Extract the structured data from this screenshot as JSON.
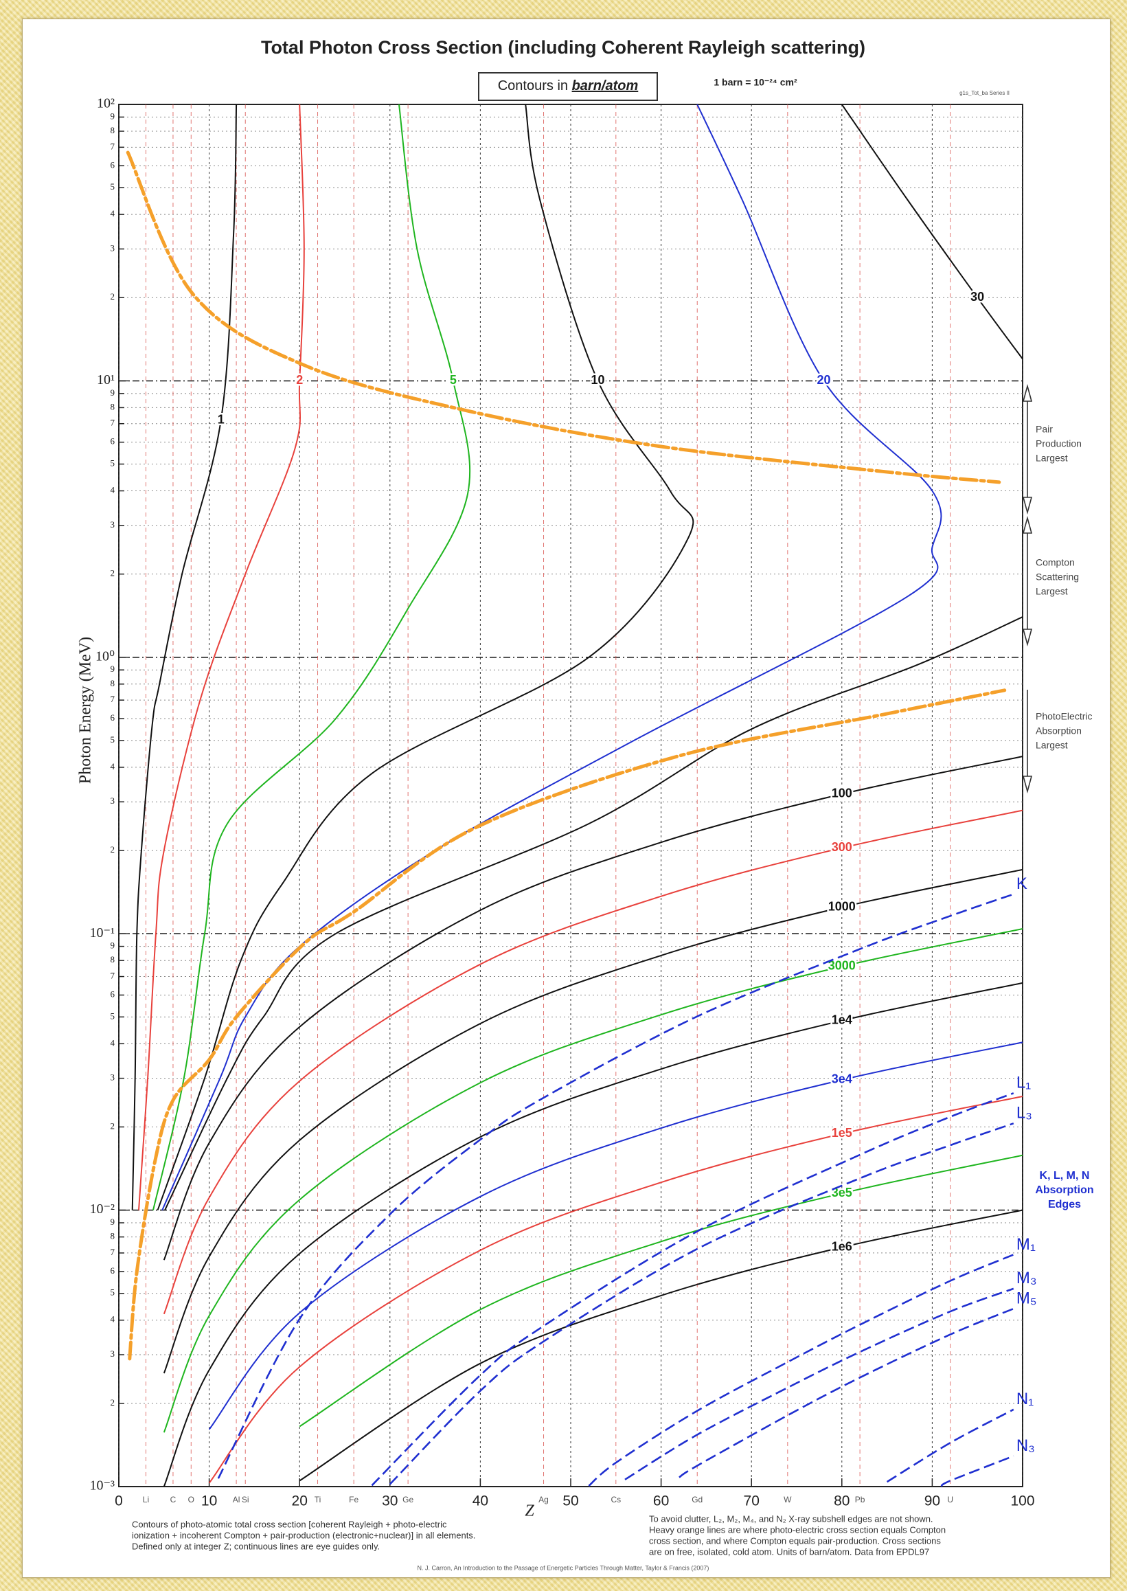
{
  "chart_data": {
    "type": "contour",
    "title": "Total Photon Cross Section (including Coherent Rayleigh scattering)",
    "box_prefix": "Contours in",
    "box_unit": "barn/atom",
    "unit_note": "1 barn = 10⁻²⁴ cm²",
    "code": "g1s_Tot_ba   Series II",
    "x_label": "Z",
    "y_label": "Photon Energy (MeV)",
    "log_y": true,
    "grid": true,
    "xlim": [
      0,
      100
    ],
    "ylim": [
      0.001,
      100
    ],
    "xticks": [
      0,
      10,
      20,
      30,
      40,
      50,
      60,
      70,
      80,
      90,
      100
    ],
    "yticks": [
      {
        "value": 0.001,
        "label": "10⁻³"
      },
      {
        "value": 0.002,
        "label": "2"
      },
      {
        "value": 0.003,
        "label": "3"
      },
      {
        "value": 0.004,
        "label": "4"
      },
      {
        "value": 0.005,
        "label": "5"
      },
      {
        "value": 0.006,
        "label": "6"
      },
      {
        "value": 0.007,
        "label": "7"
      },
      {
        "value": 0.008,
        "label": "8"
      },
      {
        "value": 0.009,
        "label": "9"
      },
      {
        "value": 0.01,
        "label": "10⁻²"
      },
      {
        "value": 0.02,
        "label": "2"
      },
      {
        "value": 0.03,
        "label": "3"
      },
      {
        "value": 0.04,
        "label": "4"
      },
      {
        "value": 0.05,
        "label": "5"
      },
      {
        "value": 0.06,
        "label": "6"
      },
      {
        "value": 0.07,
        "label": "7"
      },
      {
        "value": 0.08,
        "label": "8"
      },
      {
        "value": 0.09,
        "label": "9"
      },
      {
        "value": 0.1,
        "label": "10⁻¹"
      },
      {
        "value": 0.2,
        "label": "2"
      },
      {
        "value": 0.3,
        "label": "3"
      },
      {
        "value": 0.4,
        "label": "4"
      },
      {
        "value": 0.5,
        "label": "5"
      },
      {
        "value": 0.6,
        "label": "6"
      },
      {
        "value": 0.7,
        "label": "7"
      },
      {
        "value": 0.8,
        "label": "8"
      },
      {
        "value": 0.9,
        "label": "9"
      },
      {
        "value": 1,
        "label": "10⁰"
      },
      2,
      3,
      4,
      5,
      6,
      7,
      8,
      9,
      {
        "value": 10,
        "label": "10¹"
      },
      {
        "value": 20,
        "label": "2"
      },
      {
        "value": 30,
        "label": "3"
      },
      {
        "value": 40,
        "label": "4"
      },
      {
        "value": 50,
        "label": "5"
      },
      {
        "value": 60,
        "label": "6"
      },
      {
        "value": 70,
        "label": "7"
      },
      {
        "value": 80,
        "label": "8"
      },
      {
        "value": 90,
        "label": "9"
      },
      {
        "value": 100,
        "label": "10²"
      }
    ],
    "elements": {
      "names": [
        "Li",
        "C",
        "O",
        "Al",
        "Si",
        "Ti",
        "Fe",
        "Ge",
        "Ag",
        "Cs",
        "Gd",
        "W",
        "Pb",
        "U"
      ],
      "z": [
        3,
        6,
        8,
        13,
        14,
        22,
        26,
        32,
        47,
        55,
        64,
        74,
        82,
        92
      ],
      "color": "#d9534f"
    },
    "contours": [
      {
        "level": 1,
        "color": "#111111",
        "z": [
          13,
          12.7,
          11.3,
          7,
          4.5,
          3.7,
          2.5,
          2.0,
          1.8,
          1.5
        ],
        "energy": [
          100,
          34,
          7.2,
          2,
          0.8,
          0.57,
          0.2,
          0.1,
          0.03,
          0.01
        ]
      },
      {
        "level": 2,
        "color": "#e8413c",
        "z": [
          20,
          20.5,
          20,
          19.5,
          14,
          9,
          5,
          4.1,
          3.2,
          2.2
        ],
        "energy": [
          100,
          30,
          10,
          5.7,
          2,
          0.7,
          0.2,
          0.1,
          0.03,
          0.01
        ]
      },
      {
        "level": 5,
        "color": "#1fb51f",
        "z": [
          31,
          33,
          37,
          38.6,
          32,
          24,
          12,
          9.5,
          7.2,
          3.8
        ],
        "energy": [
          100,
          30,
          10,
          3.9,
          1.5,
          0.6,
          0.25,
          0.1,
          0.03,
          0.01
        ]
      },
      {
        "level": 10,
        "color": "#111111",
        "z": [
          45,
          46.6,
          53,
          61,
          63,
          52,
          28,
          18,
          13.5,
          9.5,
          4.3
        ],
        "energy": [
          100,
          45,
          10,
          4,
          2.7,
          1,
          0.38,
          0.15,
          0.08,
          0.03,
          0.01
        ]
      },
      {
        "level": 20,
        "color": "#1f2fd0",
        "z": [
          64,
          69,
          78,
          90,
          90,
          87.4,
          57,
          35,
          20,
          14,
          11.2,
          4.8
        ],
        "energy": [
          100,
          45,
          10,
          4,
          2.5,
          1.67,
          0.5,
          0.2,
          0.09,
          0.05,
          0.03,
          0.01
        ]
      },
      {
        "level": 30,
        "color": "#111111",
        "z": [
          80,
          87.3,
          95,
          100,
          null,
          100,
          88.4,
          70,
          52,
          24,
          16,
          12,
          5.1
        ],
        "energy": [
          100,
          45,
          20,
          12,
          null,
          1.4,
          0.94,
          0.55,
          0.25,
          0.1,
          0.05,
          0.03,
          0.01
        ]
      },
      {
        "level": 100,
        "color": "#111111",
        "z": [
          5,
          10,
          20,
          40,
          60,
          80,
          100
        ],
        "energy": [
          0.0066,
          0.0175,
          0.046,
          0.1216,
          0.214,
          0.32,
          0.438
        ]
      },
      {
        "level": 300,
        "color": "#e8413c",
        "z": [
          5,
          10,
          20,
          40,
          60,
          80,
          100
        ],
        "energy": [
          0.00421,
          0.0111,
          0.0293,
          0.0775,
          0.1366,
          0.2043,
          0.2794
        ]
      },
      {
        "level": 1000,
        "color": "#111111",
        "z": [
          5,
          10,
          20,
          40,
          60,
          80,
          100
        ],
        "energy": [
          0.00257,
          0.00679,
          0.0179,
          0.0473,
          0.0834,
          0.1247,
          0.1706
        ]
      },
      {
        "level": 3000,
        "color": "#1fb51f",
        "z": [
          5,
          10,
          20,
          40,
          60,
          80,
          100
        ],
        "energy": [
          0.00157,
          0.00415,
          0.0109,
          0.0289,
          0.0509,
          0.0761,
          0.1042
        ]
      },
      {
        "level": 10000,
        "label": "1e4",
        "color": "#111111",
        "z": [
          5,
          10,
          20,
          40,
          60,
          80,
          100
        ],
        "energy": [
          0.001,
          0.00264,
          0.00696,
          0.0184,
          0.0324,
          0.0485,
          0.0664
        ]
      },
      {
        "level": 30000,
        "label": "3e4",
        "color": "#1f2fd0",
        "z": [
          10,
          20,
          40,
          60,
          80,
          100
        ],
        "energy": [
          0.00161,
          0.00425,
          0.0112,
          0.0198,
          0.0296,
          0.0405
        ]
      },
      {
        "level": 100000,
        "label": "1e5",
        "color": "#e8413c",
        "z": [
          10,
          20,
          40,
          60,
          80,
          100
        ],
        "energy": [
          0.00103,
          0.00271,
          0.00716,
          0.0126,
          0.0189,
          0.0258
        ]
      },
      {
        "level": 300000,
        "label": "3e5",
        "color": "#1fb51f",
        "z": [
          20,
          40,
          60,
          80,
          100
        ],
        "energy": [
          0.00165,
          0.00437,
          0.0077,
          0.0115,
          0.0158
        ]
      },
      {
        "level": 1000000,
        "label": "1e6",
        "color": "#111111",
        "z": [
          20,
          40,
          60,
          80,
          100
        ],
        "energy": [
          0.00105,
          0.00279,
          0.00491,
          0.00734,
          0.01
        ]
      }
    ],
    "boundaries": [
      {
        "color": "#f5a02a",
        "z": [
          1.2,
          2,
          4,
          6,
          10,
          13,
          20.5,
          26,
          39.6,
          62,
          84.5,
          98
        ],
        "energy": [
          0.0029,
          0.006,
          0.015,
          0.025,
          0.035,
          0.05,
          0.092,
          0.12,
          0.243,
          0.44,
          0.62,
          0.76
        ]
      },
      {
        "color": "#f5a02a",
        "z": [
          1,
          8.2,
          20.5,
          38.5,
          59.8,
          84.5,
          97.4
        ],
        "energy": [
          67,
          20.6,
          11.4,
          7.8,
          5.8,
          4.7,
          4.3
        ]
      }
    ],
    "edges": [
      {
        "name": "K",
        "color": "#1f2fd0",
        "z": [
          11,
          20,
          30,
          40,
          47,
          64,
          82,
          92,
          99
        ],
        "energy": [
          0.00107,
          0.00404,
          0.00966,
          0.018,
          0.0255,
          0.0502,
          0.088,
          0.116,
          0.139
        ]
      },
      {
        "name": "L₁",
        "color": "#1f2fd0",
        "z": [
          28,
          40,
          47,
          64,
          82,
          92,
          99
        ],
        "energy": [
          0.00101,
          0.00253,
          0.00381,
          0.00838,
          0.01586,
          0.02176,
          0.0265
        ]
      },
      {
        "name": "L₃",
        "color": "#1f2fd0",
        "z": [
          30,
          40,
          47,
          64,
          82,
          92,
          99
        ],
        "energy": [
          0.00102,
          0.00222,
          0.00335,
          0.00724,
          0.01304,
          0.01717,
          0.0206
        ]
      },
      {
        "name": "M₁",
        "color": "#1f2fd0",
        "z": [
          52,
          55,
          64,
          74,
          82,
          92,
          99
        ],
        "energy": [
          0.001006,
          0.00122,
          0.00188,
          0.00282,
          0.00385,
          0.00555,
          0.0069
        ]
      },
      {
        "name": "M₃",
        "color": "#1f2fd0",
        "z": [
          56,
          64,
          74,
          82,
          92,
          99
        ],
        "energy": [
          0.00106,
          0.00154,
          0.00228,
          0.00307,
          0.0043,
          0.0052
        ]
      },
      {
        "name": "M₅",
        "color": "#1f2fd0",
        "z": [
          62,
          64,
          74,
          82,
          92,
          99
        ],
        "energy": [
          0.00108,
          0.00119,
          0.00181,
          0.00248,
          0.00355,
          0.0044
        ]
      },
      {
        "name": "N₁",
        "color": "#1f2fd0",
        "z": [
          85,
          92,
          99
        ],
        "energy": [
          0.00104,
          0.00144,
          0.0019
        ]
      },
      {
        "name": "N₃",
        "color": "#1f2fd0",
        "z": [
          91,
          92,
          99
        ],
        "energy": [
          0.001,
          0.00105,
          0.00129
        ]
      }
    ],
    "edges_title": [
      "K, L, M, N",
      "Absorption",
      "Edges"
    ],
    "regions": [
      {
        "lines": [
          "Pair",
          "Production",
          "Largest"
        ]
      },
      {
        "lines": [
          "Compton",
          "Scattering",
          "Largest"
        ]
      },
      {
        "lines": [
          "PhotoElectric",
          "Absorption",
          "Largest"
        ]
      }
    ],
    "notes_left": [
      "Contours of photo-atomic total cross section [coherent Rayleigh + photo-electric",
      "ionization + incoherent Compton + pair-production (electronic+nuclear)] in all elements.",
      "Defined only at integer Z; continuous lines are eye guides only."
    ],
    "notes_right": [
      "To avoid clutter, L₂, M₂, M₄, and N₂ X-ray subshell edges are not shown.",
      "Heavy orange lines are where photo-electric cross section equals Compton",
      "cross section, and where Compton equals pair-production.  Cross sections",
      "are on free, isolated, cold atom.  Units of barn/atom.  Data from EPDL97"
    ],
    "citation": "N. J. Carron, An Introduction to the Passage of Energetic Particles Through Matter, Taylor & Francis (2007)"
  }
}
